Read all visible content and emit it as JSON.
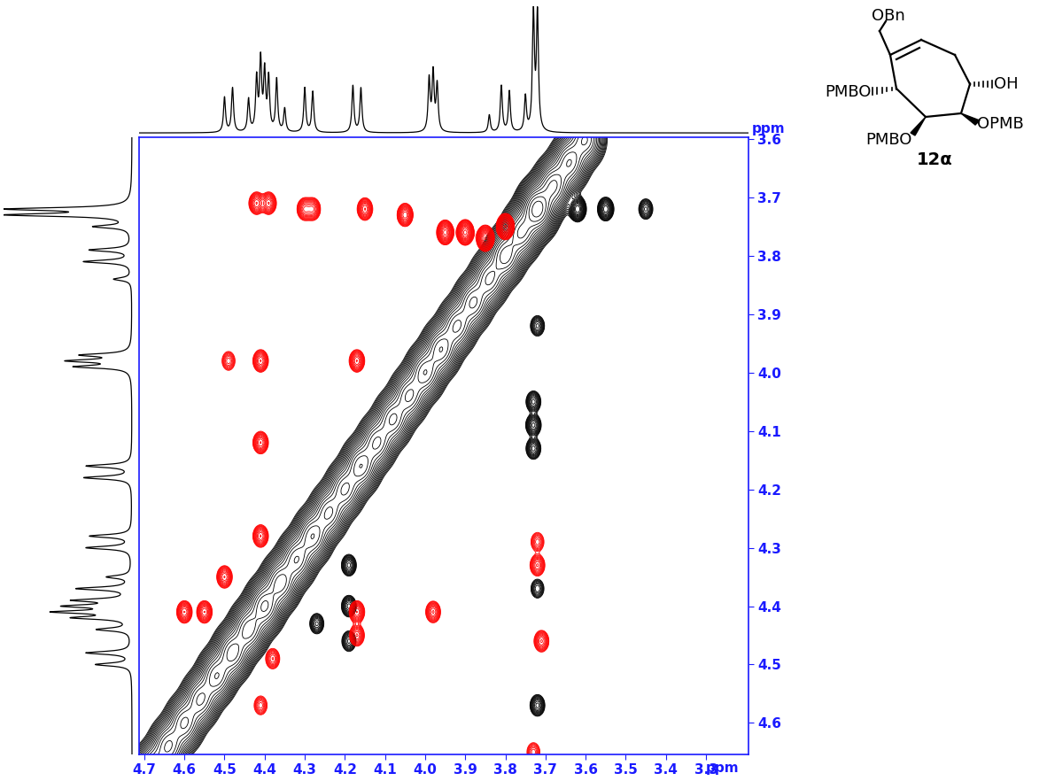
{
  "chart_data": {
    "type": "contour",
    "xlabel": "ppm",
    "ylabel": "ppm",
    "xlim": [
      4.713,
      3.194
    ],
    "ylim": [
      4.654,
      3.597
    ],
    "xticks": [
      4.7,
      4.6,
      4.5,
      4.4,
      4.3,
      4.2,
      4.1,
      4.0,
      3.9,
      3.8,
      3.7,
      3.6,
      3.5,
      3.4,
      3.3
    ],
    "yticks": [
      3.6,
      3.7,
      3.8,
      3.9,
      4.0,
      4.1,
      4.2,
      4.3,
      4.4,
      4.5,
      4.6
    ],
    "grid": false,
    "tick_labels": true,
    "projection": {
      "color": "#000000",
      "peaks": [
        [
          4.5,
          0.3
        ],
        [
          4.48,
          0.38
        ],
        [
          4.44,
          0.28
        ],
        [
          4.42,
          0.45
        ],
        [
          4.41,
          0.6
        ],
        [
          4.4,
          0.5
        ],
        [
          4.39,
          0.45
        ],
        [
          4.37,
          0.45
        ],
        [
          4.35,
          0.2
        ],
        [
          4.3,
          0.38
        ],
        [
          4.28,
          0.35
        ],
        [
          4.18,
          0.4
        ],
        [
          4.16,
          0.38
        ],
        [
          3.99,
          0.45
        ],
        [
          3.98,
          0.5
        ],
        [
          3.97,
          0.4
        ],
        [
          3.84,
          0.15
        ],
        [
          3.81,
          0.4
        ],
        [
          3.79,
          0.35
        ],
        [
          3.75,
          0.3
        ],
        [
          3.73,
          1.0
        ],
        [
          3.72,
          1.0
        ]
      ]
    },
    "diagonal": {
      "color": "#000000",
      "peaks": [
        [
          4.68,
          0.6
        ],
        [
          4.64,
          0.6
        ],
        [
          4.6,
          0.6
        ],
        [
          4.56,
          0.6
        ],
        [
          4.52,
          0.7
        ],
        [
          4.48,
          0.8
        ],
        [
          4.44,
          0.8
        ],
        [
          4.4,
          0.9
        ],
        [
          4.36,
          0.8
        ],
        [
          4.32,
          0.7
        ],
        [
          4.28,
          0.7
        ],
        [
          4.24,
          0.6
        ],
        [
          4.2,
          0.6
        ],
        [
          4.16,
          0.7
        ],
        [
          4.12,
          0.6
        ],
        [
          4.08,
          0.6
        ],
        [
          4.04,
          0.6
        ],
        [
          4.0,
          0.7
        ],
        [
          3.96,
          0.7
        ],
        [
          3.92,
          0.6
        ],
        [
          3.88,
          0.6
        ],
        [
          3.84,
          0.6
        ],
        [
          3.8,
          0.8
        ],
        [
          3.76,
          0.9
        ],
        [
          3.72,
          1.5
        ],
        [
          3.68,
          0.9
        ],
        [
          3.64,
          0.7
        ],
        [
          3.6,
          0.6
        ]
      ]
    },
    "series": [
      {
        "color": "#000000",
        "peaks": [
          [
            3.73,
            4.05,
            0.25
          ],
          [
            3.73,
            4.09,
            0.3
          ],
          [
            3.73,
            4.13,
            0.25
          ],
          [
            3.72,
            3.92,
            0.2
          ],
          [
            3.72,
            4.57,
            0.25
          ],
          [
            4.19,
            4.33,
            0.25
          ],
          [
            4.19,
            4.4,
            0.25
          ],
          [
            4.19,
            4.46,
            0.2
          ],
          [
            4.27,
            4.43,
            0.2
          ],
          [
            3.72,
            4.37,
            0.15
          ],
          [
            3.62,
            3.72,
            0.6
          ],
          [
            3.55,
            3.72,
            0.4
          ],
          [
            3.45,
            3.72,
            0.2
          ]
        ]
      },
      {
        "color": "#ff0000",
        "peaks": [
          [
            4.42,
            3.71,
            -0.3
          ],
          [
            4.39,
            3.71,
            -0.3
          ],
          [
            4.3,
            3.72,
            -0.3
          ],
          [
            4.28,
            3.72,
            -0.3
          ],
          [
            4.41,
            3.98,
            -0.3
          ],
          [
            4.49,
            3.98,
            -0.15
          ],
          [
            4.17,
            3.98,
            -0.3
          ],
          [
            4.41,
            4.12,
            -0.3
          ],
          [
            4.41,
            4.28,
            -0.3
          ],
          [
            4.5,
            4.35,
            -0.3
          ],
          [
            4.6,
            4.41,
            -0.3
          ],
          [
            4.55,
            4.41,
            -0.3
          ],
          [
            4.17,
            4.41,
            -0.3
          ],
          [
            3.98,
            4.41,
            -0.25
          ],
          [
            4.17,
            4.45,
            -0.25
          ],
          [
            3.72,
            4.33,
            -0.25
          ],
          [
            3.71,
            4.46,
            -0.25
          ],
          [
            3.72,
            4.29,
            -0.15
          ],
          [
            3.73,
            4.65,
            -0.15
          ],
          [
            4.38,
            4.49,
            -0.2
          ],
          [
            4.41,
            4.57,
            -0.15
          ],
          [
            3.95,
            3.76,
            -0.5
          ],
          [
            3.9,
            3.76,
            -0.6
          ],
          [
            3.85,
            3.77,
            -0.7
          ],
          [
            3.8,
            3.75,
            -0.7
          ],
          [
            4.05,
            3.73,
            -0.35
          ],
          [
            4.15,
            3.72,
            -0.3
          ]
        ]
      }
    ]
  },
  "structure": {
    "compound": "12α",
    "substituents": [
      "OBn",
      "PMBO",
      "PMBO",
      "OPMB",
      "OH"
    ]
  }
}
